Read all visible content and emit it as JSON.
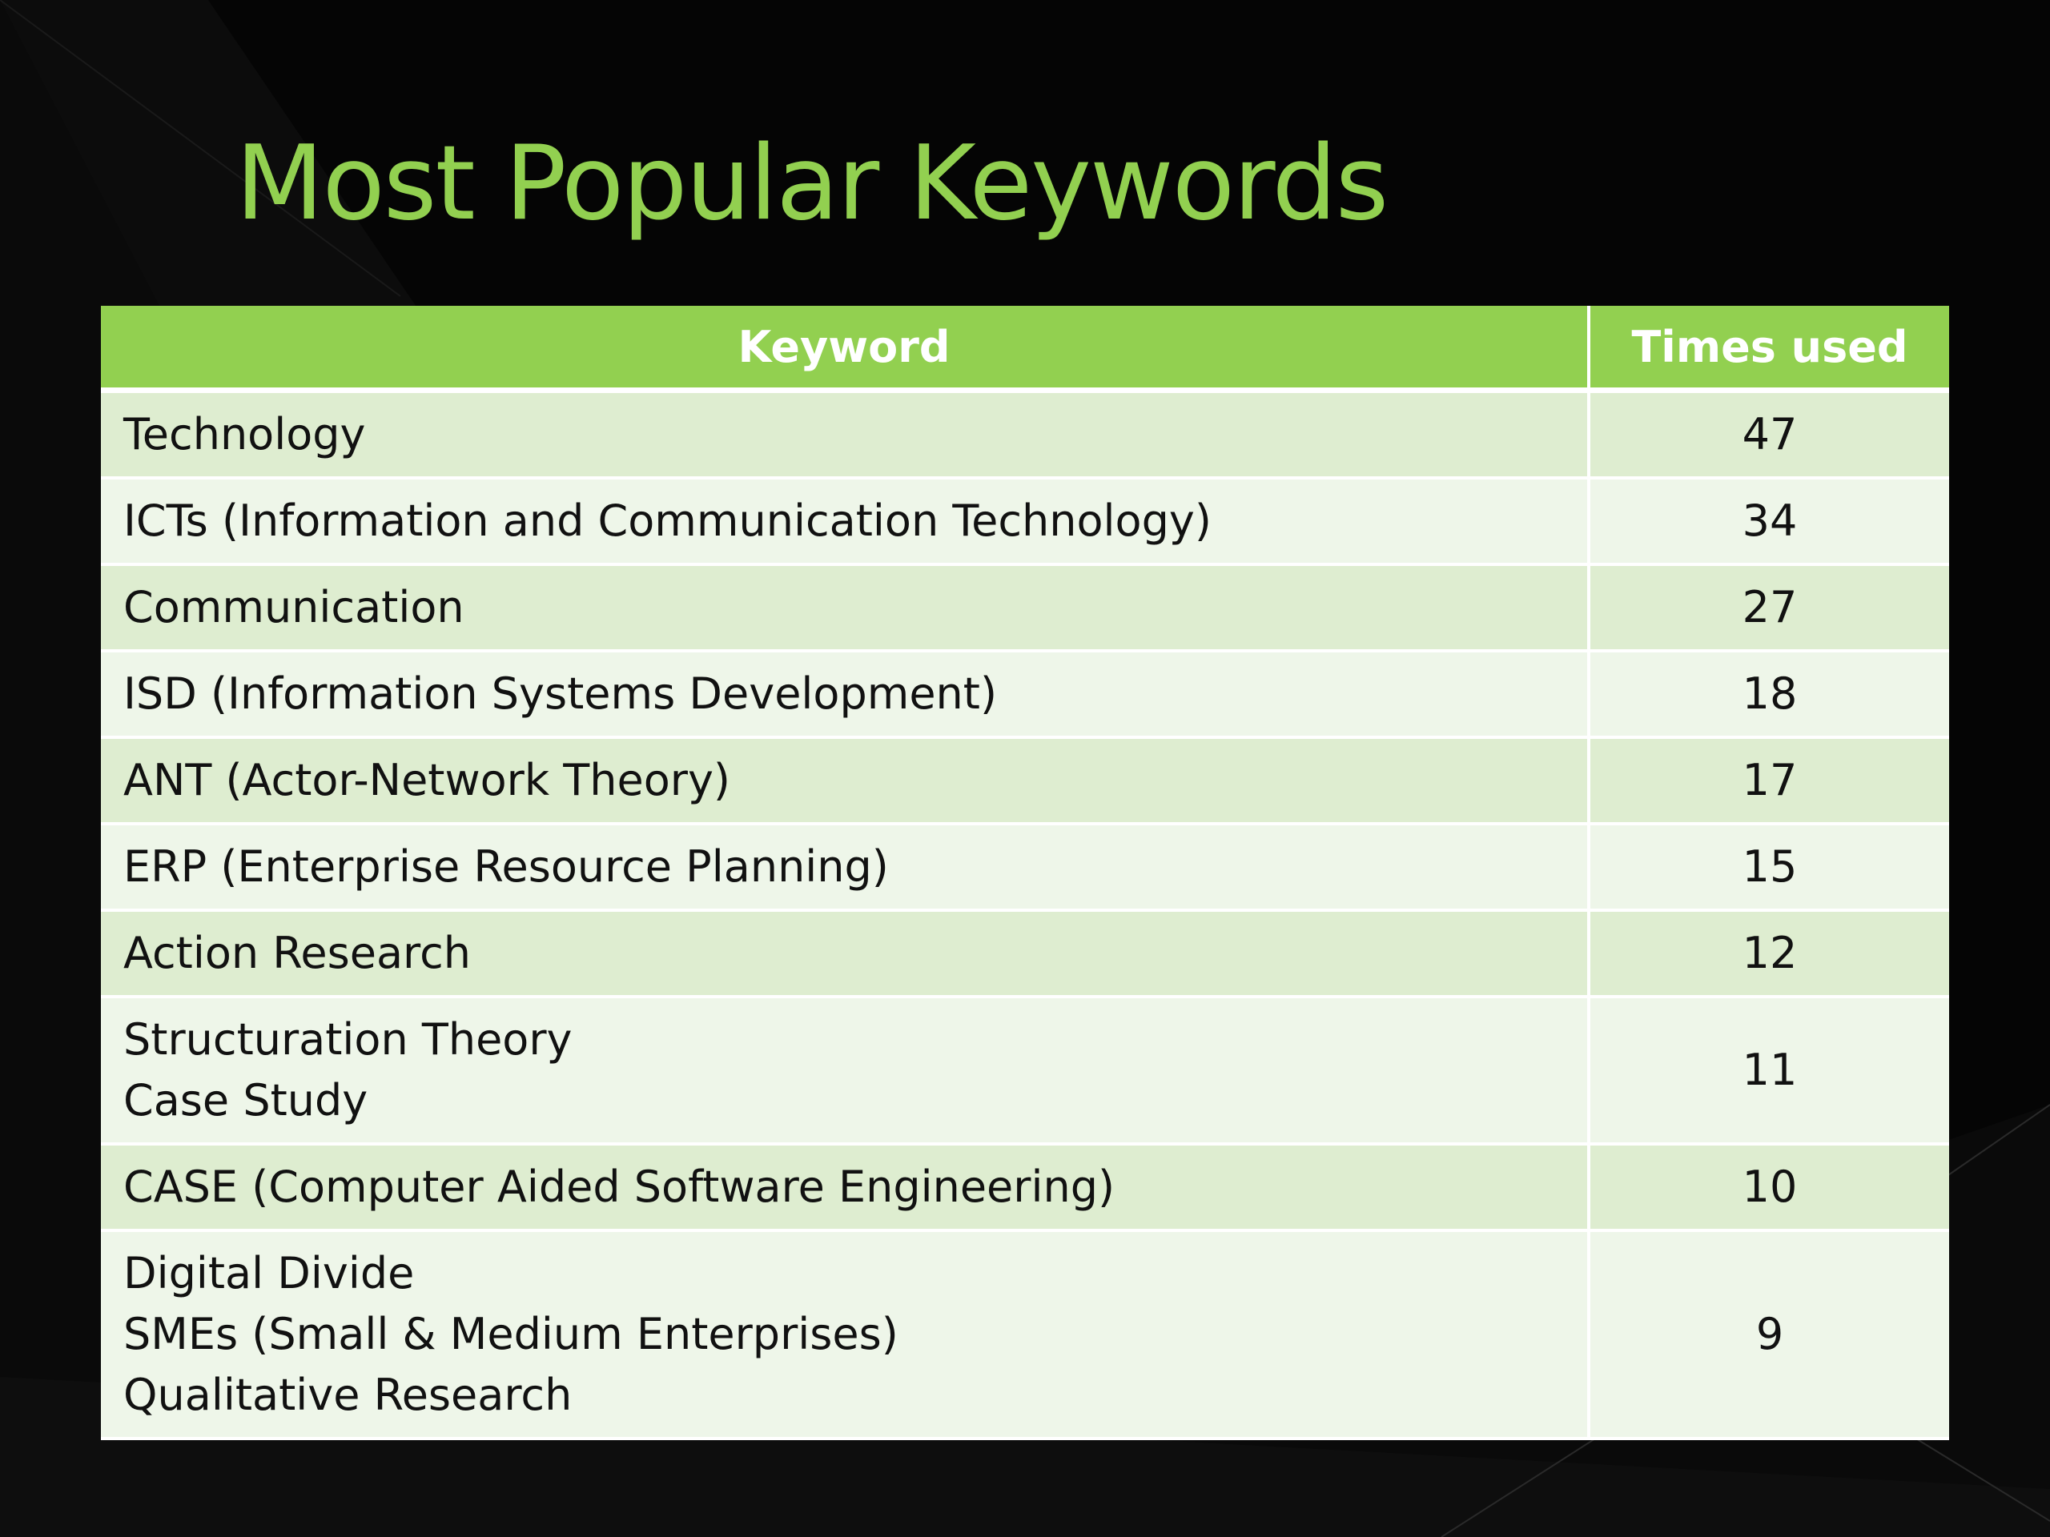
{
  "title": "Most Popular Keywords",
  "colors": {
    "accent": "#92d050",
    "background": "#050505",
    "row_band": "#deedd0",
    "row_light": "#eef6e9"
  },
  "table": {
    "headers": [
      "Keyword",
      "Times used"
    ],
    "rows": [
      {
        "keywords": [
          "Technology"
        ],
        "count": "47"
      },
      {
        "keywords": [
          "ICTs (Information and Communication Technology)"
        ],
        "count": "34"
      },
      {
        "keywords": [
          "Communication"
        ],
        "count": "27"
      },
      {
        "keywords": [
          "ISD (Information Systems Development)"
        ],
        "count": "18"
      },
      {
        "keywords": [
          "ANT (Actor-Network Theory)"
        ],
        "count": "17"
      },
      {
        "keywords": [
          "ERP (Enterprise Resource Planning)"
        ],
        "count": "15"
      },
      {
        "keywords": [
          "Action Research"
        ],
        "count": "12"
      },
      {
        "keywords": [
          "Structuration Theory",
          "Case Study"
        ],
        "count": "11"
      },
      {
        "keywords": [
          "CASE (Computer Aided Software Engineering)"
        ],
        "count": "10"
      },
      {
        "keywords": [
          "Digital Divide",
          "SMEs (Small & Medium Enterprises)",
          "Qualitative Research"
        ],
        "count": "9"
      }
    ]
  }
}
